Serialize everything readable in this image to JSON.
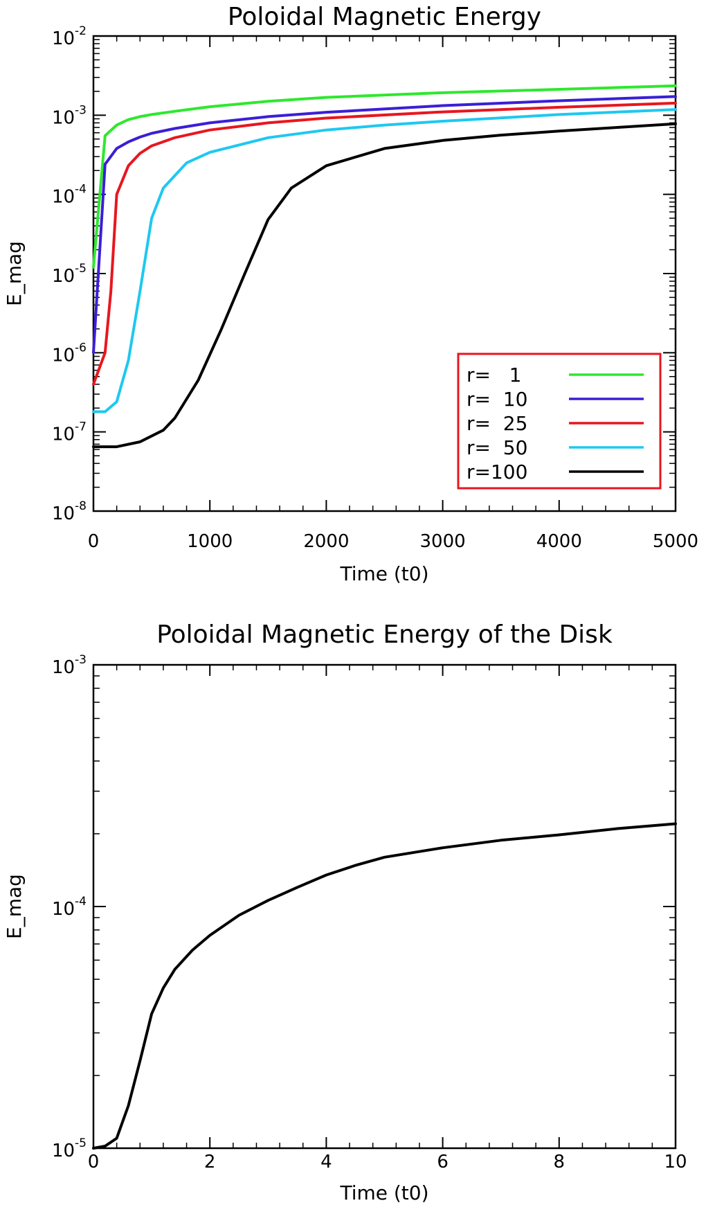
{
  "chart_data": [
    {
      "type": "line",
      "title": "Poloidal Magnetic Energy",
      "xlabel": "Time (t0)",
      "ylabel": "E_mag",
      "yscale": "log",
      "xlim": [
        0,
        5000
      ],
      "ylim_exp": [
        -8,
        -2
      ],
      "xticks": [
        0,
        1000,
        2000,
        3000,
        4000,
        5000
      ],
      "xtick_labels": [
        "0",
        "1000",
        "2000",
        "3000",
        "4000",
        "5000"
      ],
      "yticks_exp": [
        -8,
        -7,
        -6,
        -5,
        -4,
        -3,
        -2
      ],
      "ytick_base": "10",
      "ytick_exps": [
        "-8",
        "-7",
        "-6",
        "-5",
        "-4",
        "-3",
        "-2"
      ],
      "legend": {
        "position": "lower-right",
        "border_color": "#e8161f"
      },
      "series": [
        {
          "name": "r=   1",
          "color": "#2ee82e",
          "x": [
            0,
            100,
            200,
            300,
            400,
            500,
            700,
            1000,
            1500,
            2000,
            3000,
            4000,
            5000
          ],
          "y": [
            1.2e-05,
            0.00055,
            0.00075,
            0.00088,
            0.00096,
            0.00102,
            0.00112,
            0.00128,
            0.0015,
            0.00168,
            0.00192,
            0.00212,
            0.00235
          ]
        },
        {
          "name": "r=  10",
          "color": "#3a1fd6",
          "x": [
            0,
            100,
            200,
            300,
            400,
            500,
            700,
            1000,
            1500,
            2000,
            3000,
            4000,
            5000
          ],
          "y": [
            1e-06,
            0.00024,
            0.00038,
            0.00046,
            0.00053,
            0.00059,
            0.00068,
            0.0008,
            0.00096,
            0.00109,
            0.00132,
            0.00152,
            0.00172
          ]
        },
        {
          "name": "r=  25",
          "color": "#e8161f",
          "x": [
            0,
            100,
            150,
            200,
            300,
            400,
            500,
            700,
            1000,
            1500,
            2000,
            3000,
            4000,
            5000
          ],
          "y": [
            4e-07,
            1e-06,
            6e-06,
            0.0001,
            0.00023,
            0.00033,
            0.00041,
            0.00052,
            0.00065,
            0.0008,
            0.00092,
            0.0011,
            0.00126,
            0.00142
          ]
        },
        {
          "name": "r=  50",
          "color": "#1ec8f0",
          "x": [
            0,
            100,
            200,
            300,
            400,
            500,
            600,
            800,
            1000,
            1500,
            2000,
            2500,
            3000,
            4000,
            5000
          ],
          "y": [
            1.8e-07,
            1.8e-07,
            2.4e-07,
            8e-07,
            6e-06,
            5e-05,
            0.00012,
            0.00025,
            0.00034,
            0.00052,
            0.00065,
            0.00075,
            0.00084,
            0.00102,
            0.00118
          ]
        },
        {
          "name": "r=100",
          "color": "#000000",
          "x": [
            0,
            200,
            400,
            600,
            700,
            900,
            1100,
            1300,
            1500,
            1700,
            2000,
            2500,
            3000,
            3500,
            4000,
            4500,
            5000
          ],
          "y": [
            6.5e-08,
            6.5e-08,
            7.5e-08,
            1.05e-07,
            1.5e-07,
            4.5e-07,
            2e-06,
            1e-05,
            4.8e-05,
            0.00012,
            0.00023,
            0.00038,
            0.00048,
            0.00056,
            0.00063,
            0.0007,
            0.00078
          ]
        }
      ]
    },
    {
      "type": "line",
      "title": "Poloidal Magnetic Energy of the Disk",
      "xlabel": "Time (t0)",
      "ylabel": "E_mag",
      "yscale": "log",
      "xlim": [
        0,
        10
      ],
      "ylim_exp": [
        -5,
        -3
      ],
      "xticks": [
        0,
        2,
        4,
        6,
        8,
        10
      ],
      "xtick_labels": [
        "0",
        "2",
        "4",
        "6",
        "8",
        "10"
      ],
      "yticks_exp": [
        -5,
        -4,
        -3
      ],
      "ytick_base": "10",
      "ytick_exps": [
        "-5",
        "-4",
        "-3"
      ],
      "series": [
        {
          "name": "disk",
          "color": "#000000",
          "x": [
            0,
            0.2,
            0.4,
            0.6,
            0.8,
            1.0,
            1.2,
            1.4,
            1.7,
            2.0,
            2.5,
            3.0,
            3.5,
            4.0,
            4.5,
            5.0,
            6.0,
            7.0,
            8.0,
            9.0,
            10.0
          ],
          "y": [
            1e-05,
            1.02e-05,
            1.1e-05,
            1.5e-05,
            2.3e-05,
            3.6e-05,
            4.6e-05,
            5.5e-05,
            6.6e-05,
            7.6e-05,
            9.2e-05,
            0.000106,
            0.00012,
            0.000135,
            0.000148,
            0.00016,
            0.000175,
            0.000188,
            0.000198,
            0.00021,
            0.00022
          ]
        }
      ]
    }
  ]
}
